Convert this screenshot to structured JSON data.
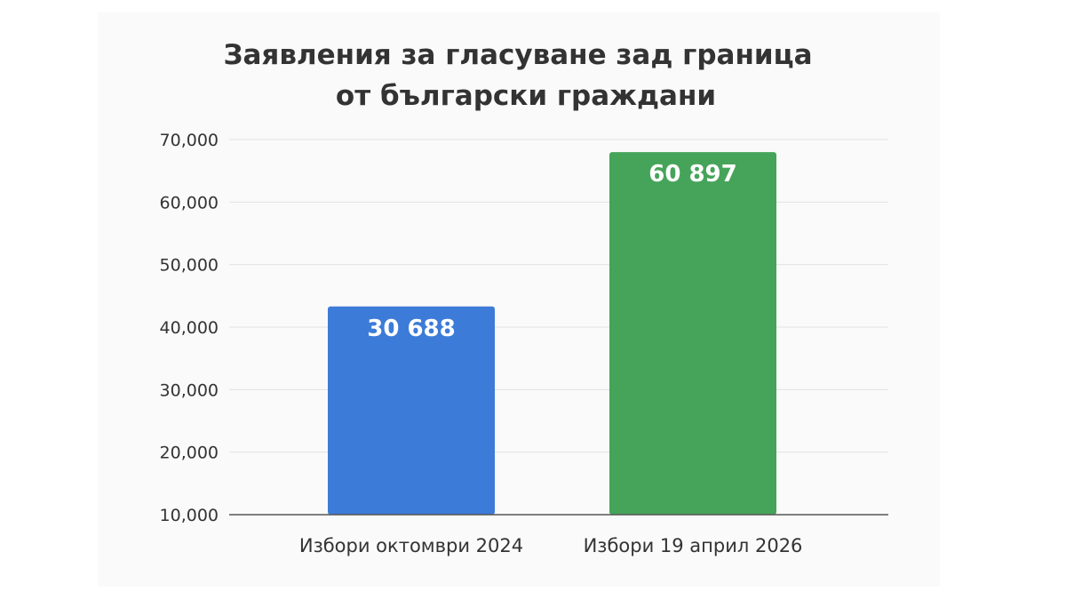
{
  "chart_data": {
    "type": "bar",
    "title": [
      "Заявления за гласуване зад граница",
      "от български граждани"
    ],
    "categories": [
      "Избори октомври 2024",
      "Избори 19 април 2026"
    ],
    "values": [
      30688,
      60897
    ],
    "data_labels": [
      "30 688",
      "60 897"
    ],
    "bar_colors": [
      "#3d7bd8",
      "#46a45a"
    ],
    "ylim": [
      10000,
      70000
    ],
    "yticks": [
      10000,
      20000,
      30000,
      40000,
      50000,
      60000,
      70000
    ],
    "ytick_labels": [
      "10,000",
      "20,000",
      "30,000",
      "40,000",
      "50,000",
      "60,000",
      "70,000"
    ],
    "xlabel": "",
    "ylabel": "",
    "grid": true,
    "legend": "none"
  }
}
